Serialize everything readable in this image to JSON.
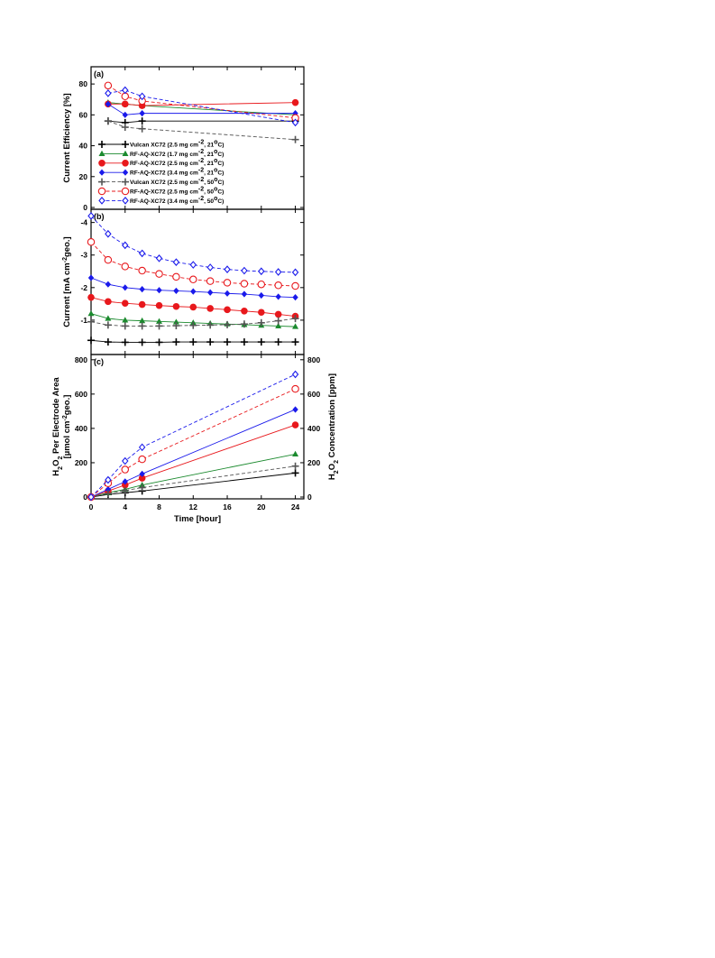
{
  "chart_data": {
    "type": "line",
    "x_label": "Time [hour]",
    "x_ticks": [
      0,
      4,
      8,
      12,
      16,
      20,
      24
    ],
    "x_range": [
      0,
      25
    ],
    "panels": [
      {
        "id": "a",
        "label": "(a)",
        "y_label": "Current Efficiency [%]",
        "y_range": [
          0,
          90
        ],
        "y_ticks": [
          0,
          20,
          40,
          60,
          80
        ],
        "legend_placement": "bottom-left",
        "series": [
          {
            "name": "Vulcan XC72 (2.5 mg cm-2, 21oC)",
            "color": "#000000",
            "marker": "plus",
            "dashed": false,
            "x": [
              2,
              4,
              6,
              24
            ],
            "y": [
              56,
              55,
              56,
              56
            ]
          },
          {
            "name": "RF-AQ-XC72 (1.7 mg cm-2, 21oC)",
            "color": "#1b8a2e",
            "marker": "triangle",
            "dashed": false,
            "x": [
              2,
              4,
              6,
              24
            ],
            "y": [
              68,
              67,
              66,
              60
            ]
          },
          {
            "name": "RF-AQ-XC72 (2.5 mg cm-2, 21oC)",
            "color": "#e8181c",
            "marker": "circle",
            "dashed": false,
            "x": [
              2,
              4,
              6,
              24
            ],
            "y": [
              67,
              67,
              66,
              68
            ]
          },
          {
            "name": "RF-AQ-XC72 (3.4 mg cm-2, 21oC)",
            "color": "#1a1aeb",
            "marker": "diamond",
            "dashed": false,
            "x": [
              2,
              4,
              6,
              24
            ],
            "y": [
              67,
              60,
              61,
              61
            ]
          },
          {
            "name": "Vulcan XC72 (2.5 mg cm-2, 50oC)",
            "color": "#555555",
            "marker": "plus",
            "dashed": true,
            "x": [
              2,
              4,
              6,
              24
            ],
            "y": [
              56,
              52,
              51,
              44
            ]
          },
          {
            "name": "RF-AQ-XC72 (2.5 mg cm-2, 50oC)",
            "color": "#e8181c",
            "marker": "circle-open",
            "dashed": true,
            "x": [
              2,
              4,
              6,
              24
            ],
            "y": [
              79,
              72,
              69,
              58
            ]
          },
          {
            "name": "RF-AQ-XC72 (3.4 mg cm-2, 50oC)",
            "color": "#1a1aeb",
            "marker": "diamond-open",
            "dashed": true,
            "x": [
              2,
              4,
              6,
              24
            ],
            "y": [
              74,
              76,
              72,
              55
            ]
          }
        ]
      },
      {
        "id": "b",
        "label": "(b)",
        "y_label": "Current [mA cm-2geo.]",
        "y_range": [
          0,
          -4.35
        ],
        "y_ticks": [
          -1,
          -2,
          -3,
          -4
        ],
        "y_tick_labels": [
          "-1",
          "-2",
          "-3",
          "-4"
        ],
        "series": [
          {
            "name": "Vulcan XC72 (2.5 mg cm-2, 21oC)",
            "color": "#000000",
            "marker": "plus",
            "dashed": false,
            "x": [
              0,
              2,
              4,
              6,
              8,
              10,
              12,
              14,
              16,
              18,
              20,
              22,
              24
            ],
            "y": [
              -0.38,
              -0.33,
              -0.32,
              -0.32,
              -0.32,
              -0.33,
              -0.33,
              -0.33,
              -0.33,
              -0.33,
              -0.33,
              -0.33,
              -0.33
            ]
          },
          {
            "name": "RF-AQ-XC72 (1.7 mg cm-2, 21oC)",
            "color": "#1b8a2e",
            "marker": "triangle",
            "dashed": false,
            "x": [
              0,
              2,
              4,
              6,
              8,
              10,
              12,
              14,
              16,
              18,
              20,
              22,
              24
            ],
            "y": [
              -1.2,
              -1.05,
              -1.0,
              -0.98,
              -0.96,
              -0.94,
              -0.92,
              -0.9,
              -0.88,
              -0.86,
              -0.84,
              -0.82,
              -0.8
            ]
          },
          {
            "name": "RF-AQ-XC72 (2.5 mg cm-2, 21oC)",
            "color": "#e8181c",
            "marker": "circle",
            "dashed": false,
            "x": [
              0,
              2,
              4,
              6,
              8,
              10,
              12,
              14,
              16,
              18,
              20,
              22,
              24
            ],
            "y": [
              -1.7,
              -1.57,
              -1.52,
              -1.48,
              -1.45,
              -1.42,
              -1.4,
              -1.36,
              -1.32,
              -1.28,
              -1.24,
              -1.18,
              -1.12
            ]
          },
          {
            "name": "RF-AQ-XC72 (3.4 mg cm-2, 21oC)",
            "color": "#1a1aeb",
            "marker": "diamond",
            "dashed": false,
            "x": [
              0,
              2,
              4,
              6,
              8,
              10,
              12,
              14,
              16,
              18,
              20,
              22,
              24
            ],
            "y": [
              -2.3,
              -2.1,
              -2.0,
              -1.95,
              -1.92,
              -1.9,
              -1.88,
              -1.85,
              -1.82,
              -1.8,
              -1.76,
              -1.72,
              -1.7
            ]
          },
          {
            "name": "Vulcan XC72 (2.5 mg cm-2, 50oC)",
            "color": "#555555",
            "marker": "plus",
            "dashed": true,
            "x": [
              0,
              2,
              4,
              6,
              8,
              10,
              12,
              14,
              16,
              18,
              20,
              22,
              24
            ],
            "y": [
              -0.95,
              -0.85,
              -0.82,
              -0.82,
              -0.82,
              -0.83,
              -0.84,
              -0.85,
              -0.86,
              -0.88,
              -0.92,
              -0.98,
              -1.05
            ]
          },
          {
            "name": "RF-AQ-XC72 (2.5 mg cm-2, 50oC)",
            "color": "#e8181c",
            "marker": "circle-open",
            "dashed": true,
            "x": [
              0,
              2,
              4,
              6,
              8,
              10,
              12,
              14,
              16,
              18,
              20,
              22,
              24
            ],
            "y": [
              -3.4,
              -2.85,
              -2.65,
              -2.52,
              -2.42,
              -2.33,
              -2.25,
              -2.2,
              -2.15,
              -2.12,
              -2.1,
              -2.07,
              -2.05
            ]
          },
          {
            "name": "RF-AQ-XC72 (3.4 mg cm-2, 50oC)",
            "color": "#1a1aeb",
            "marker": "diamond-open",
            "dashed": true,
            "x": [
              0,
              2,
              4,
              6,
              8,
              10,
              12,
              14,
              16,
              18,
              20,
              22,
              24
            ],
            "y": [
              -4.2,
              -3.65,
              -3.3,
              -3.05,
              -2.9,
              -2.78,
              -2.7,
              -2.62,
              -2.56,
              -2.52,
              -2.5,
              -2.48,
              -2.47
            ]
          }
        ]
      },
      {
        "id": "c",
        "label": "(c)",
        "y_label_line1": "H2O2 Per Electrode Area",
        "y_label_line2": "[µmol cm-2geo.]",
        "y_range": [
          0,
          820
        ],
        "y_ticks": [
          0,
          200,
          400,
          600,
          800
        ],
        "y2_label": "H2O2 Concentration [ppm]",
        "y2_range": [
          0,
          820
        ],
        "y2_ticks": [
          0,
          200,
          400,
          600,
          800
        ],
        "series": [
          {
            "name": "Vulcan XC72 (2.5 mg cm-2, 21oC)",
            "color": "#000000",
            "marker": "plus",
            "dashed": false,
            "x": [
              0,
              2,
              4,
              6,
              24
            ],
            "y": [
              0,
              15,
              25,
              35,
              140
            ]
          },
          {
            "name": "RF-AQ-XC72 (1.7 mg cm-2, 21oC)",
            "color": "#1b8a2e",
            "marker": "triangle",
            "dashed": false,
            "x": [
              0,
              2,
              4,
              6,
              24
            ],
            "y": [
              0,
              25,
              45,
              70,
              250
            ]
          },
          {
            "name": "RF-AQ-XC72 (2.5 mg cm-2, 21oC)",
            "color": "#e8181c",
            "marker": "circle",
            "dashed": false,
            "x": [
              0,
              2,
              4,
              6,
              24
            ],
            "y": [
              0,
              35,
              70,
              110,
              420
            ]
          },
          {
            "name": "RF-AQ-XC72 (3.4 mg cm-2, 21oC)",
            "color": "#1a1aeb",
            "marker": "diamond",
            "dashed": false,
            "x": [
              0,
              2,
              4,
              6,
              24
            ],
            "y": [
              0,
              45,
              90,
              135,
              510
            ]
          },
          {
            "name": "Vulcan XC72 (2.5 mg cm-2, 50oC)",
            "color": "#555555",
            "marker": "plus",
            "dashed": true,
            "x": [
              0,
              2,
              4,
              6,
              24
            ],
            "y": [
              0,
              20,
              38,
              55,
              180
            ]
          },
          {
            "name": "RF-AQ-XC72 (2.5 mg cm-2, 50oC)",
            "color": "#e8181c",
            "marker": "circle-open",
            "dashed": true,
            "x": [
              0,
              2,
              4,
              6,
              24
            ],
            "y": [
              0,
              80,
              160,
              220,
              630
            ]
          },
          {
            "name": "RF-AQ-XC72 (3.4 mg cm-2, 50oC)",
            "color": "#1a1aeb",
            "marker": "diamond-open",
            "dashed": true,
            "x": [
              0,
              2,
              4,
              6,
              24
            ],
            "y": [
              0,
              100,
              210,
              290,
              715
            ]
          }
        ]
      }
    ]
  }
}
